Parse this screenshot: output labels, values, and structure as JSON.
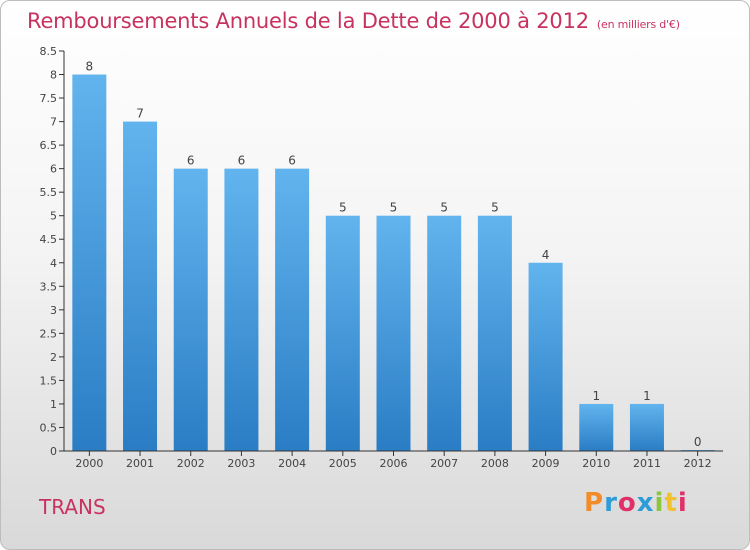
{
  "title": "Remboursements Annuels de la Dette de 2000 à 2012",
  "subtitle": "(en milliers d'€)",
  "entity_name": "TRANS",
  "logo": {
    "text": "Proxiti",
    "letter_colors": [
      "#f28c28",
      "#2d9cd8",
      "#e0306a",
      "#2d9cd8",
      "#8cc63f",
      "#f2c12e",
      "#e0306a"
    ]
  },
  "colors": {
    "title": "#c8325f",
    "bar_top": "#62b4ee",
    "bar_bottom": "#2a7dc4",
    "axis": "#333333",
    "label": "#444444"
  },
  "chart_data": {
    "type": "bar",
    "categories": [
      "2000",
      "2001",
      "2002",
      "2003",
      "2004",
      "2005",
      "2006",
      "2007",
      "2008",
      "2009",
      "2010",
      "2011",
      "2012"
    ],
    "values": [
      8,
      7,
      6,
      6,
      6,
      5,
      5,
      5,
      5,
      4,
      1,
      1,
      0
    ],
    "data_labels": [
      "8",
      "7",
      "6",
      "6",
      "6",
      "5",
      "5",
      "5",
      "5",
      "4",
      "1",
      "1",
      "0"
    ],
    "ylim": [
      0,
      8.5
    ],
    "yticks": [
      0,
      0.5,
      1,
      1.5,
      2,
      2.5,
      3,
      3.5,
      4,
      4.5,
      5,
      5.5,
      6,
      6.5,
      7,
      7.5,
      8,
      8.5
    ],
    "ytick_labels": [
      "0",
      "0.5",
      "1",
      "1.5",
      "2",
      "2.5",
      "3",
      "3.5",
      "4",
      "4.5",
      "5",
      "5.5",
      "6",
      "6.5",
      "7",
      "7.5",
      "8",
      "8.5"
    ],
    "grid": false,
    "xlabel": "",
    "ylabel": ""
  }
}
